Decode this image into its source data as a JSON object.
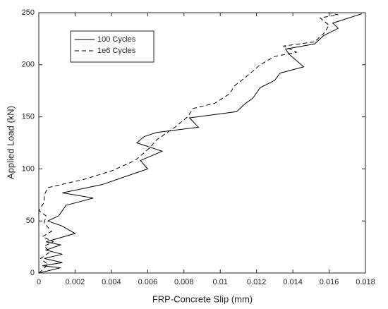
{
  "chart_data": {
    "type": "line",
    "xlabel": "FRP-Concrete Slip (mm)",
    "ylabel": "Applied Load (kN)",
    "xlim": [
      0,
      0.018
    ],
    "xticks": [
      0,
      0.002,
      0.004,
      0.006,
      0.008,
      0.01,
      0.012,
      0.014,
      0.016,
      0.018
    ],
    "ylim": [
      0,
      250
    ],
    "yticks": [
      0,
      50,
      100,
      150,
      200,
      250
    ],
    "legend": "upper left",
    "series": [
      {
        "name": "100 Cycles",
        "color": "#000000",
        "dash": "solid",
        "x": [
          0,
          0.0012,
          0.0002,
          0.0013,
          0.0003,
          0.0013,
          0.0004,
          0.0012,
          0.0004,
          0.002,
          0.0013,
          0.0005,
          0.0011,
          0.0015,
          0.003,
          0.0013,
          0.0035,
          0.006,
          0.0056,
          0.0068,
          0.0054,
          0.0058,
          0.0065,
          0.0088,
          0.0083,
          0.0109,
          0.0114,
          0.0118,
          0.0122,
          0.013,
          0.0133,
          0.0146,
          0.0138,
          0.0136,
          0.0152,
          0.0157,
          0.0165,
          0.0162,
          0.0178
        ],
        "values": [
          0,
          5,
          7,
          10,
          14,
          18,
          22,
          27,
          30,
          38,
          45,
          50,
          55,
          65,
          72,
          77,
          85,
          100,
          108,
          117,
          125,
          131,
          135,
          140,
          149,
          155,
          163,
          168,
          178,
          185,
          192,
          198,
          210,
          215,
          220,
          228,
          235,
          240,
          249
        ]
      },
      {
        "name": "1e6 Cycles",
        "color": "#000000",
        "dash": "dashed",
        "x": [
          0,
          0.0005,
          0.0001,
          0.0006,
          0.0003,
          0.0008,
          0.0002,
          0.0007,
          0.0003,
          0.0004,
          0,
          0.0003,
          0.0003,
          0.0005,
          0.0025,
          0.004,
          0.0053,
          0.0061,
          0.0065,
          0.0075,
          0.0082,
          0.0085,
          0.0097,
          0.0105,
          0.0108,
          0.0114,
          0.0122,
          0.013,
          0.0142,
          0.0135,
          0.0152,
          0.0157,
          0.016,
          0.0155,
          0.0165,
          0.016
        ],
        "values": [
          0,
          8,
          14,
          20,
          26,
          30,
          35,
          40,
          48,
          55,
          60,
          68,
          75,
          82,
          90,
          98,
          108,
          120,
          128,
          140,
          150,
          158,
          163,
          172,
          180,
          188,
          200,
          208,
          212,
          218,
          222,
          230,
          238,
          245,
          248,
          250
        ]
      }
    ]
  }
}
